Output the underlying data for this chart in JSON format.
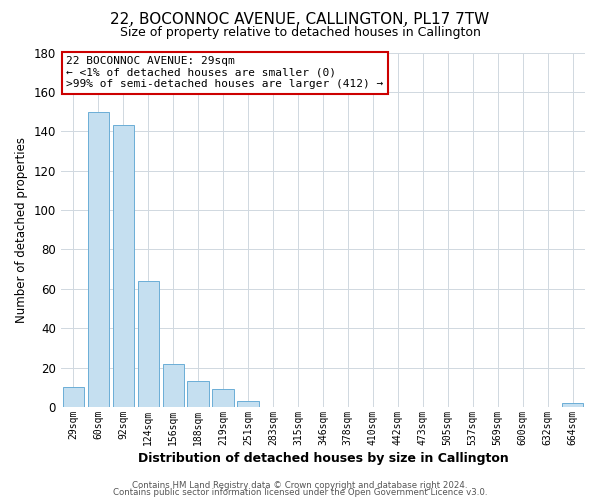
{
  "title": "22, BOCONNOC AVENUE, CALLINGTON, PL17 7TW",
  "subtitle": "Size of property relative to detached houses in Callington",
  "xlabel": "Distribution of detached houses by size in Callington",
  "ylabel": "Number of detached properties",
  "bar_color": "#c5dff0",
  "bar_edge_color": "#6baed6",
  "categories": [
    "29sqm",
    "60sqm",
    "92sqm",
    "124sqm",
    "156sqm",
    "188sqm",
    "219sqm",
    "251sqm",
    "283sqm",
    "315sqm",
    "346sqm",
    "378sqm",
    "410sqm",
    "442sqm",
    "473sqm",
    "505sqm",
    "537sqm",
    "569sqm",
    "600sqm",
    "632sqm",
    "664sqm"
  ],
  "values": [
    10,
    150,
    143,
    64,
    22,
    13,
    9,
    3,
    0,
    0,
    0,
    0,
    0,
    0,
    0,
    0,
    0,
    0,
    0,
    0,
    2
  ],
  "ylim": [
    0,
    180
  ],
  "yticks": [
    0,
    20,
    40,
    60,
    80,
    100,
    120,
    140,
    160,
    180
  ],
  "annotation_title": "22 BOCONNOC AVENUE: 29sqm",
  "annotation_line1": "← <1% of detached houses are smaller (0)",
  "annotation_line2": ">99% of semi-detached houses are larger (412) →",
  "annotation_box_color": "#ffffff",
  "annotation_border_color": "#cc0000",
  "footer1": "Contains HM Land Registry data © Crown copyright and database right 2024.",
  "footer2": "Contains public sector information licensed under the Open Government Licence v3.0.",
  "background_color": "#ffffff",
  "grid_color": "#d0d8e0"
}
